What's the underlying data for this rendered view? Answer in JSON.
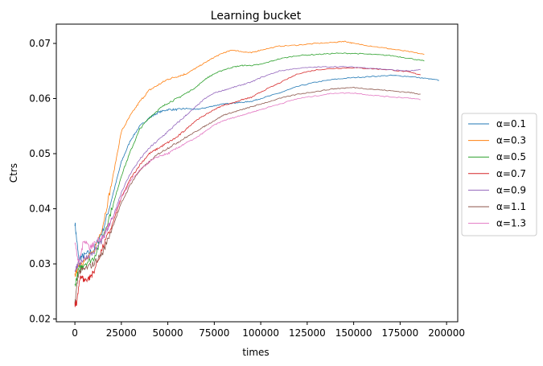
{
  "chart_data": {
    "type": "line",
    "title": "Learning bucket",
    "xlabel": "times",
    "ylabel": "Ctrs",
    "xlim": [
      -10000,
      206000
    ],
    "ylim": [
      0.0195,
      0.0735
    ],
    "xticks": [
      0,
      25000,
      50000,
      75000,
      100000,
      125000,
      150000,
      175000,
      200000
    ],
    "xtick_labels": [
      "0",
      "25000",
      "50000",
      "75000",
      "100000",
      "125000",
      "150000",
      "175000",
      "200000"
    ],
    "yticks": [
      0.02,
      0.03,
      0.04,
      0.05,
      0.06,
      0.07
    ],
    "ytick_labels": [
      "0.02",
      "0.03",
      "0.04",
      "0.05",
      "0.06",
      "0.07"
    ],
    "legend_position": "center-right outside",
    "series": [
      {
        "name": "α=0.1",
        "color": "#1f77b4",
        "x": [
          0,
          2000,
          5000,
          10000,
          15000,
          20000,
          25000,
          30000,
          35000,
          40000,
          45000,
          50000,
          55000,
          60000,
          65000,
          70000,
          75000,
          80000,
          85000,
          90000,
          95000,
          100000,
          110000,
          120000,
          130000,
          140000,
          150000,
          160000,
          170000,
          180000,
          190000,
          196000
        ],
        "y": [
          0.0375,
          0.031,
          0.0315,
          0.0325,
          0.036,
          0.042,
          0.0485,
          0.0525,
          0.055,
          0.0565,
          0.0575,
          0.058,
          0.058,
          0.0582,
          0.058,
          0.0583,
          0.0587,
          0.059,
          0.0592,
          0.0593,
          0.0595,
          0.06,
          0.061,
          0.0622,
          0.063,
          0.0635,
          0.0638,
          0.064,
          0.0642,
          0.064,
          0.0636,
          0.0633
        ]
      },
      {
        "name": "α=0.3",
        "color": "#ff7f0e",
        "x": [
          0,
          2000,
          5000,
          10000,
          15000,
          20000,
          25000,
          30000,
          35000,
          40000,
          45000,
          50000,
          55000,
          60000,
          65000,
          70000,
          75000,
          80000,
          85000,
          90000,
          95000,
          100000,
          110000,
          120000,
          130000,
          140000,
          145000,
          150000,
          160000,
          170000,
          180000,
          188000
        ],
        "y": [
          0.028,
          0.03,
          0.0305,
          0.032,
          0.037,
          0.045,
          0.054,
          0.057,
          0.0595,
          0.0615,
          0.0625,
          0.0635,
          0.064,
          0.0645,
          0.0655,
          0.0665,
          0.0675,
          0.0683,
          0.0688,
          0.0685,
          0.0683,
          0.0688,
          0.0695,
          0.0697,
          0.07,
          0.0702,
          0.0704,
          0.07,
          0.0695,
          0.069,
          0.0685,
          0.068
        ]
      },
      {
        "name": "α=0.5",
        "color": "#2ca02c",
        "x": [
          0,
          2000,
          5000,
          10000,
          15000,
          20000,
          25000,
          30000,
          35000,
          40000,
          45000,
          50000,
          55000,
          60000,
          65000,
          70000,
          75000,
          80000,
          85000,
          90000,
          95000,
          100000,
          110000,
          120000,
          130000,
          140000,
          150000,
          160000,
          170000,
          180000,
          188000
        ],
        "y": [
          0.026,
          0.029,
          0.03,
          0.031,
          0.035,
          0.04,
          0.046,
          0.0505,
          0.0545,
          0.0565,
          0.058,
          0.0592,
          0.06,
          0.061,
          0.062,
          0.0635,
          0.0645,
          0.0652,
          0.0657,
          0.066,
          0.066,
          0.0662,
          0.0672,
          0.0678,
          0.068,
          0.0682,
          0.0682,
          0.068,
          0.0678,
          0.0673,
          0.0668
        ]
      },
      {
        "name": "α=0.7",
        "color": "#d62728",
        "x": [
          0,
          1000,
          3000,
          5000,
          8000,
          10000,
          15000,
          20000,
          25000,
          30000,
          35000,
          40000,
          45000,
          50000,
          55000,
          60000,
          65000,
          70000,
          75000,
          80000,
          85000,
          90000,
          95000,
          100000,
          110000,
          120000,
          130000,
          140000,
          150000,
          160000,
          170000,
          180000,
          186000
        ],
        "y": [
          0.0225,
          0.023,
          0.028,
          0.027,
          0.0275,
          0.0285,
          0.033,
          0.037,
          0.042,
          0.0455,
          0.048,
          0.05,
          0.051,
          0.052,
          0.053,
          0.0545,
          0.056,
          0.057,
          0.058,
          0.0588,
          0.0592,
          0.0598,
          0.0602,
          0.0612,
          0.0628,
          0.0645,
          0.0652,
          0.0655,
          0.0656,
          0.0654,
          0.0652,
          0.0648,
          0.0643
        ]
      },
      {
        "name": "α=0.9",
        "color": "#9467bd",
        "x": [
          0,
          2000,
          5000,
          10000,
          15000,
          20000,
          25000,
          30000,
          35000,
          40000,
          45000,
          50000,
          55000,
          60000,
          65000,
          70000,
          75000,
          80000,
          85000,
          90000,
          95000,
          100000,
          110000,
          120000,
          130000,
          140000,
          150000,
          160000,
          170000,
          180000,
          186000
        ],
        "y": [
          0.029,
          0.03,
          0.031,
          0.032,
          0.0345,
          0.038,
          0.043,
          0.0465,
          0.049,
          0.051,
          0.0525,
          0.054,
          0.0555,
          0.057,
          0.0585,
          0.06,
          0.061,
          0.0615,
          0.062,
          0.0625,
          0.063,
          0.0638,
          0.065,
          0.0655,
          0.0657,
          0.0658,
          0.0657,
          0.0655,
          0.0652,
          0.065,
          0.0652
        ]
      },
      {
        "name": "α=1.1",
        "color": "#8c564b",
        "x": [
          0,
          2000,
          5000,
          10000,
          15000,
          20000,
          25000,
          30000,
          35000,
          40000,
          45000,
          50000,
          55000,
          60000,
          65000,
          70000,
          75000,
          80000,
          85000,
          90000,
          95000,
          100000,
          110000,
          120000,
          130000,
          140000,
          150000,
          160000,
          170000,
          180000,
          186000
        ],
        "y": [
          0.023,
          0.0285,
          0.029,
          0.03,
          0.032,
          0.0365,
          0.041,
          0.0445,
          0.047,
          0.0485,
          0.05,
          0.051,
          0.052,
          0.053,
          0.054,
          0.055,
          0.056,
          0.057,
          0.0575,
          0.058,
          0.0585,
          0.059,
          0.06,
          0.0608,
          0.0613,
          0.0618,
          0.062,
          0.0617,
          0.0614,
          0.0611,
          0.0608
        ]
      },
      {
        "name": "α=1.3",
        "color": "#e377c2",
        "x": [
          0,
          2000,
          5000,
          8000,
          10000,
          15000,
          20000,
          25000,
          30000,
          35000,
          40000,
          45000,
          50000,
          55000,
          60000,
          65000,
          70000,
          75000,
          80000,
          85000,
          90000,
          95000,
          100000,
          110000,
          120000,
          130000,
          140000,
          150000,
          160000,
          170000,
          180000,
          186000
        ],
        "y": [
          0.034,
          0.03,
          0.0345,
          0.033,
          0.0335,
          0.035,
          0.038,
          0.042,
          0.045,
          0.047,
          0.0485,
          0.0495,
          0.05,
          0.051,
          0.052,
          0.0528,
          0.054,
          0.0552,
          0.056,
          0.0565,
          0.057,
          0.0575,
          0.058,
          0.059,
          0.06,
          0.0605,
          0.061,
          0.061,
          0.0606,
          0.0603,
          0.0601,
          0.0598
        ]
      }
    ]
  }
}
